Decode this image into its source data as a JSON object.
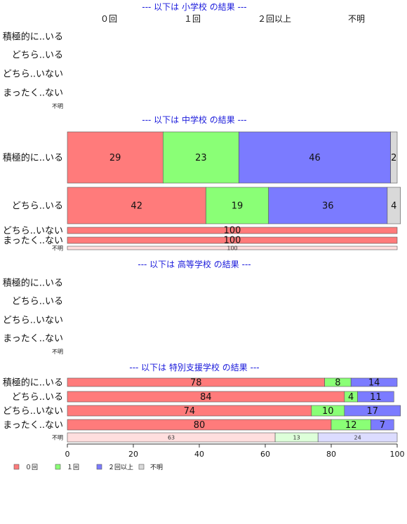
{
  "chart_data": {
    "type": "bar",
    "orientation": "horizontal",
    "stacked": true,
    "xlim": [
      0,
      100
    ],
    "xticks": [
      0,
      20,
      40,
      60,
      80,
      100
    ],
    "legend_position": "bottom-left",
    "categories_header": [
      "０回",
      "１回",
      "２回以上",
      "不明"
    ],
    "legend": [
      {
        "label": "０回",
        "color": "#ff7b7b"
      },
      {
        "label": "１回",
        "color": "#8aff76"
      },
      {
        "label": "２回以上",
        "color": "#7b7bff"
      },
      {
        "label": "不明",
        "color": "#d9d9d9"
      }
    ],
    "sections": [
      {
        "title": "--- 以下は 小学校 の結果 ---",
        "rows": [
          {
            "label": "積極的に..いる",
            "values": []
          },
          {
            "label": "どちら..いる",
            "values": []
          },
          {
            "label": "どちら..いない",
            "values": []
          },
          {
            "label": "まったく..ない",
            "values": []
          },
          {
            "label": "不明",
            "small": true,
            "values": []
          }
        ]
      },
      {
        "title": "--- 以下は 中学校 の結果 ---",
        "rows": [
          {
            "label": "積極的に..いる",
            "values": [
              29,
              23,
              46,
              2
            ]
          },
          {
            "label": "どちら..いる",
            "values": [
              42,
              19,
              36,
              4
            ]
          },
          {
            "label": "どちら..いない",
            "values": [
              100,
              0,
              0,
              0
            ]
          },
          {
            "label": "まったく..ない",
            "values": [
              100,
              0,
              0,
              0
            ]
          },
          {
            "label": "不明",
            "small": true,
            "values": [
              100,
              0,
              0,
              0
            ]
          }
        ]
      },
      {
        "title": "--- 以下は 高等学校 の結果 ---",
        "rows": [
          {
            "label": "積極的に..いる",
            "values": []
          },
          {
            "label": "どちら..いる",
            "values": []
          },
          {
            "label": "どちら..いない",
            "values": []
          },
          {
            "label": "まったく..ない",
            "values": []
          },
          {
            "label": "不明",
            "small": true,
            "values": []
          }
        ]
      },
      {
        "title": "--- 以下は 特別支援学校 の結果 ---",
        "rows": [
          {
            "label": "積極的に..いる",
            "values": [
              78,
              8,
              14,
              0
            ]
          },
          {
            "label": "どちら..いる",
            "values": [
              84,
              4,
              11,
              0
            ]
          },
          {
            "label": "どちら..いない",
            "values": [
              74,
              10,
              17,
              0
            ]
          },
          {
            "label": "まったく..ない",
            "values": [
              80,
              12,
              7,
              0
            ]
          },
          {
            "label": "不明",
            "small": true,
            "values": [
              63,
              13,
              24,
              0
            ]
          }
        ]
      }
    ]
  }
}
